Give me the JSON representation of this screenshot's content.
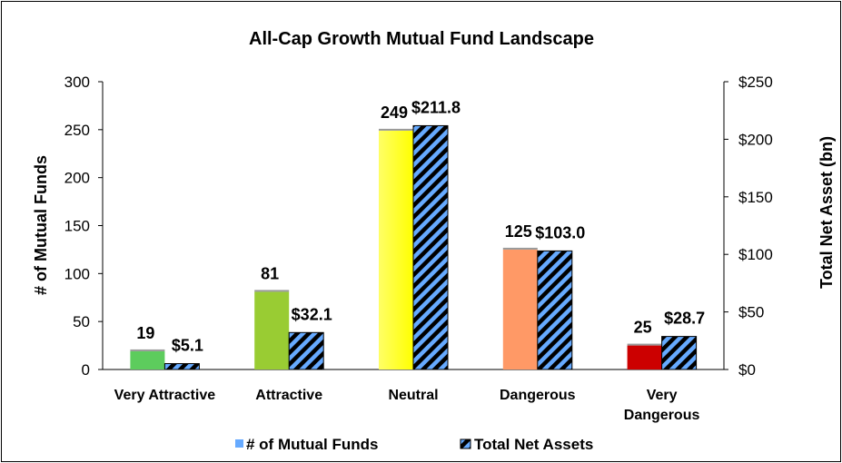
{
  "chart_data": {
    "type": "bar",
    "title": "All-Cap Growth Mutual Fund Landscape",
    "categories": [
      [
        "Very Attractive"
      ],
      [
        "Attractive"
      ],
      [
        "Neutral"
      ],
      [
        "Dangerous"
      ],
      [
        "Very",
        "Dangerous"
      ]
    ],
    "series": [
      {
        "name": "# of Mutual Funds",
        "axis": "left",
        "values": [
          19,
          81,
          249,
          125,
          25
        ],
        "labels": [
          "19",
          "81",
          "249",
          "125",
          "25"
        ],
        "colors": [
          "#5dcc5d",
          "#99cc33",
          "#ffff33",
          "#ff9966",
          "#cc0000"
        ]
      },
      {
        "name": "Total Net Assets",
        "axis": "right",
        "values": [
          5.1,
          32.1,
          211.8,
          103.0,
          28.7
        ],
        "labels": [
          "$5.1",
          "$32.1",
          "$211.8",
          "$103.0",
          "$28.7"
        ],
        "pattern": "diagonal stripes",
        "colors": [
          "#66aaff",
          "#000000"
        ]
      }
    ],
    "left_axis": {
      "label": "# of Mutual Funds",
      "range": [
        0,
        300
      ],
      "ticks": [
        "0",
        "50",
        "100",
        "150",
        "200",
        "250",
        "300"
      ]
    },
    "right_axis": {
      "label": "Total Net Asset (bn)",
      "range": [
        0,
        250
      ],
      "ticks": [
        "$0",
        "$50",
        "$100",
        "$150",
        "$200",
        "$250"
      ]
    },
    "legend": {
      "position": "bottom",
      "items": [
        "# of Mutual Funds",
        "Total Net Assets"
      ]
    },
    "grid": false
  }
}
